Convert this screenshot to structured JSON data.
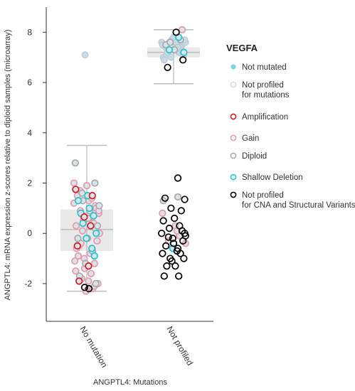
{
  "chart_data": {
    "type": "scatter",
    "title": "",
    "xlabel": "ANGPTL4: Mutations",
    "ylabel": "ANGPTL4: mRNA expression z-scores relative to diploid samples (microarray)",
    "ylim": [
      -3.5,
      9
    ],
    "y_ticks": [
      -2,
      0,
      2,
      4,
      6,
      8
    ],
    "categories": [
      "No mutation",
      "Not profiled"
    ],
    "grid": false,
    "legend_placement": "right",
    "legend": {
      "title": "VEGFA",
      "entries": [
        {
          "key": "not_mutated",
          "label_lines": [
            "Not mutated"
          ],
          "color": "#7fd3e0",
          "kind": "filled"
        },
        {
          "key": "not_profiled_mut",
          "label_lines": [
            "Not profiled",
            "for mutations"
          ],
          "color": "#d8d8d8",
          "kind": "ring"
        },
        {
          "key": "amplification",
          "label_lines": [
            "Amplification"
          ],
          "color": "#d7191c",
          "kind": "ring"
        },
        {
          "key": "gain",
          "label_lines": [
            "Gain"
          ],
          "color": "#e899ac",
          "kind": "ring"
        },
        {
          "key": "diploid",
          "label_lines": [
            "Diploid"
          ],
          "color": "#a9a9a9",
          "kind": "ring"
        },
        {
          "key": "shallow_deletion",
          "label_lines": [
            "Shallow Deletion"
          ],
          "color": "#1ec6d0",
          "kind": "ring"
        },
        {
          "key": "not_profiled_cna",
          "label_lines": [
            "Not profiled",
            "for CNA and Structural Variants"
          ],
          "color": "#000000",
          "kind": "ring"
        }
      ]
    },
    "boxes": [
      {
        "category": "No mutation",
        "whisker_low": -2.3,
        "q1": -0.7,
        "median": 0.15,
        "q3": 0.95,
        "whisker_high": 3.5
      },
      {
        "category": "Not profiled",
        "whisker_low": 5.95,
        "q1": 7.0,
        "median": 7.2,
        "q3": 7.4,
        "whisker_high": 8.1
      }
    ],
    "series": [
      {
        "category": "No mutation",
        "group": "gain",
        "jitter": [
          -0.3,
          -0.22,
          -0.15,
          -0.08,
          0.05,
          0.12,
          0.2,
          0.28,
          -0.25,
          -0.1,
          0.02,
          0.16,
          0.3,
          -0.18,
          0.08,
          -0.28,
          0.24,
          -0.05,
          0.1,
          -0.2,
          0.18,
          -0.12,
          0.26,
          -0.02,
          0.14,
          -0.26,
          0.06,
          0.22,
          -0.16,
          0.0,
          -0.24,
          0.2,
          -0.06,
          0.12,
          0.28,
          -0.14,
          0.04,
          -0.3,
          0.18,
          -0.08
        ],
        "values": [
          1.2,
          1.5,
          0.9,
          0.7,
          1.3,
          0.5,
          1.1,
          0.8,
          0.3,
          0.1,
          -0.2,
          0.4,
          0.0,
          -0.5,
          -0.8,
          -1.1,
          -0.3,
          -1.4,
          -1.6,
          -0.9,
          -1.2,
          -1.8,
          -2.0,
          -2.3,
          -2.2,
          -1.5,
          0.6,
          1.0,
          1.7,
          1.9,
          -0.6,
          0.2,
          -1.0,
          1.4,
          0.9,
          -0.4,
          -1.9,
          2.0,
          -2.1,
          0.5
        ]
      },
      {
        "category": "No mutation",
        "group": "diploid",
        "jitter": [
          -0.27,
          0.19,
          -0.11,
          0.07,
          0.25,
          -0.21,
          0.13,
          -0.03,
          0.29,
          -0.17,
          0.03,
          0.21,
          -0.09
        ],
        "values": [
          2.8,
          2.0,
          1.6,
          0.9,
          0.3,
          -0.2,
          -0.7,
          -1.2,
          1.1,
          -1.7,
          0.6,
          -2.0,
          1.3
        ]
      },
      {
        "category": "No mutation",
        "group": "shallow_deletion",
        "jitter": [
          -0.2,
          0.06,
          0.16,
          -0.09,
          0.22,
          -0.01,
          0.12,
          -0.14,
          0.02,
          0.18
        ],
        "values": [
          1.3,
          1.0,
          0.7,
          0.4,
          0.0,
          -0.2,
          -0.6,
          0.8,
          1.5,
          -0.9
        ]
      },
      {
        "category": "No mutation",
        "group": "amplification",
        "jitter": [
          -0.26,
          -0.06,
          0.09,
          -0.22,
          0.04,
          -0.18,
          0.13
        ],
        "values": [
          1.75,
          0.65,
          0.3,
          -0.5,
          -1.3,
          -1.9,
          1.5
        ]
      },
      {
        "category": "No mutation",
        "group": "not_profiled_mut",
        "jitter": [
          -0.04
        ],
        "values": [
          7.1
        ]
      },
      {
        "category": "No mutation",
        "group": "not_profiled_cna",
        "jitter": [
          -0.05,
          0.05
        ],
        "values": [
          -2.15,
          -2.2
        ]
      },
      {
        "category": "Not profiled",
        "group": "not_profiled_mut",
        "jitter": [
          -0.28,
          -0.2,
          -0.12,
          -0.04,
          0.04,
          0.12,
          0.2,
          0.28,
          -0.24,
          -0.16,
          -0.08,
          0.0,
          0.08,
          0.16,
          0.24,
          -0.22,
          -0.1,
          0.02,
          0.14,
          0.26,
          -0.18,
          -0.06,
          0.06,
          0.18,
          -0.26,
          -0.14,
          0.1,
          0.22
        ],
        "values": [
          7.6,
          7.5,
          7.3,
          7.7,
          7.4,
          7.2,
          7.5,
          7.6,
          7.0,
          7.1,
          7.3,
          7.8,
          7.5,
          7.4,
          7.1,
          6.9,
          7.6,
          7.3,
          7.2,
          7.7,
          7.4,
          7.0,
          7.6,
          7.3,
          7.5,
          7.2,
          7.4,
          7.1
        ]
      },
      {
        "category": "Not profiled",
        "group": "diploid",
        "jitter": [
          -0.18,
          0.02,
          0.16,
          -0.08,
          0.24,
          -0.24,
          0.1
        ],
        "values": [
          7.5,
          7.3,
          7.7,
          7.6,
          7.2,
          1.3,
          1.45
        ]
      },
      {
        "category": "Not profiled",
        "group": "shallow_deletion",
        "jitter": [
          -0.1,
          0.12,
          0.24,
          -0.02
        ],
        "values": [
          7.3,
          7.8,
          7.2,
          -0.6
        ]
      },
      {
        "category": "Not profiled",
        "group": "gain",
        "jitter": [
          0.2,
          -0.26,
          0.04,
          0.14,
          -0.12,
          0.28,
          0.08
        ],
        "values": [
          8.1,
          0.8,
          0.3,
          -0.1,
          -0.3,
          -0.4,
          0.1
        ]
      },
      {
        "category": "Not profiled",
        "group": "not_profiled_cna",
        "jitter": [
          0.06,
          -0.14,
          0.22,
          0.1,
          -0.2,
          0.26,
          -0.06,
          0.18,
          -0.24,
          0.02,
          0.14,
          -0.1,
          -0.28,
          0.28,
          -0.02,
          0.22,
          -0.18,
          0.08,
          -0.26,
          0.16,
          -0.08,
          0.24,
          -0.16,
          0.04,
          0.12,
          -0.22,
          0.0,
          0.2,
          -0.12,
          0.1,
          -0.04,
          0.26
        ],
        "values": [
          8.0,
          6.6,
          6.9,
          2.2,
          1.4,
          1.35,
          1.0,
          0.9,
          0.5,
          0.6,
          0.3,
          0.2,
          0.0,
          -0.1,
          -0.2,
          -0.3,
          -0.5,
          -0.7,
          -0.8,
          -0.8,
          -1.0,
          -1.0,
          -1.3,
          -1.3,
          -1.7,
          -1.7,
          -0.4,
          0.1,
          -0.15,
          -0.6,
          -1.1,
          0.0
        ]
      }
    ]
  }
}
